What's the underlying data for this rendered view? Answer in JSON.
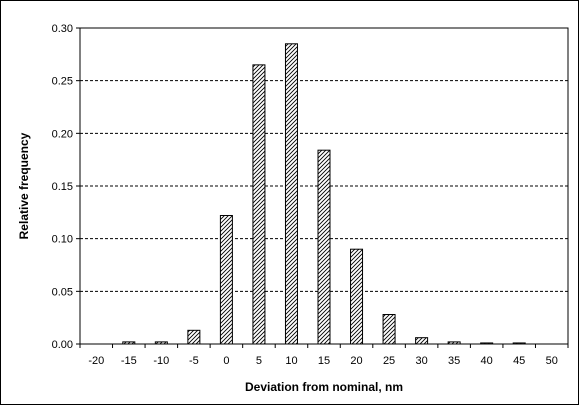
{
  "chart_data": {
    "type": "bar",
    "title": "",
    "xlabel": "Deviation from nominal, nm",
    "ylabel": "Relative frequency",
    "categories": [
      "-20",
      "-15",
      "-10",
      "-5",
      "0",
      "5",
      "10",
      "15",
      "20",
      "25",
      "30",
      "35",
      "40",
      "45",
      "50"
    ],
    "values": [
      0,
      0.002,
      0.002,
      0.013,
      0.122,
      0.265,
      0.285,
      0.184,
      0.09,
      0.028,
      0.006,
      0.002,
      0.001,
      0.001,
      0
    ],
    "y_ticks": [
      "0.00",
      "0.05",
      "0.10",
      "0.15",
      "0.20",
      "0.25",
      "0.30"
    ],
    "ylim": [
      0,
      0.3
    ],
    "grid": "horizontal dashed",
    "bar_pattern": "diagonal hatch",
    "colors": {
      "bar_stroke": "#000000",
      "hatch": "#000000",
      "grid": "#000000"
    }
  }
}
